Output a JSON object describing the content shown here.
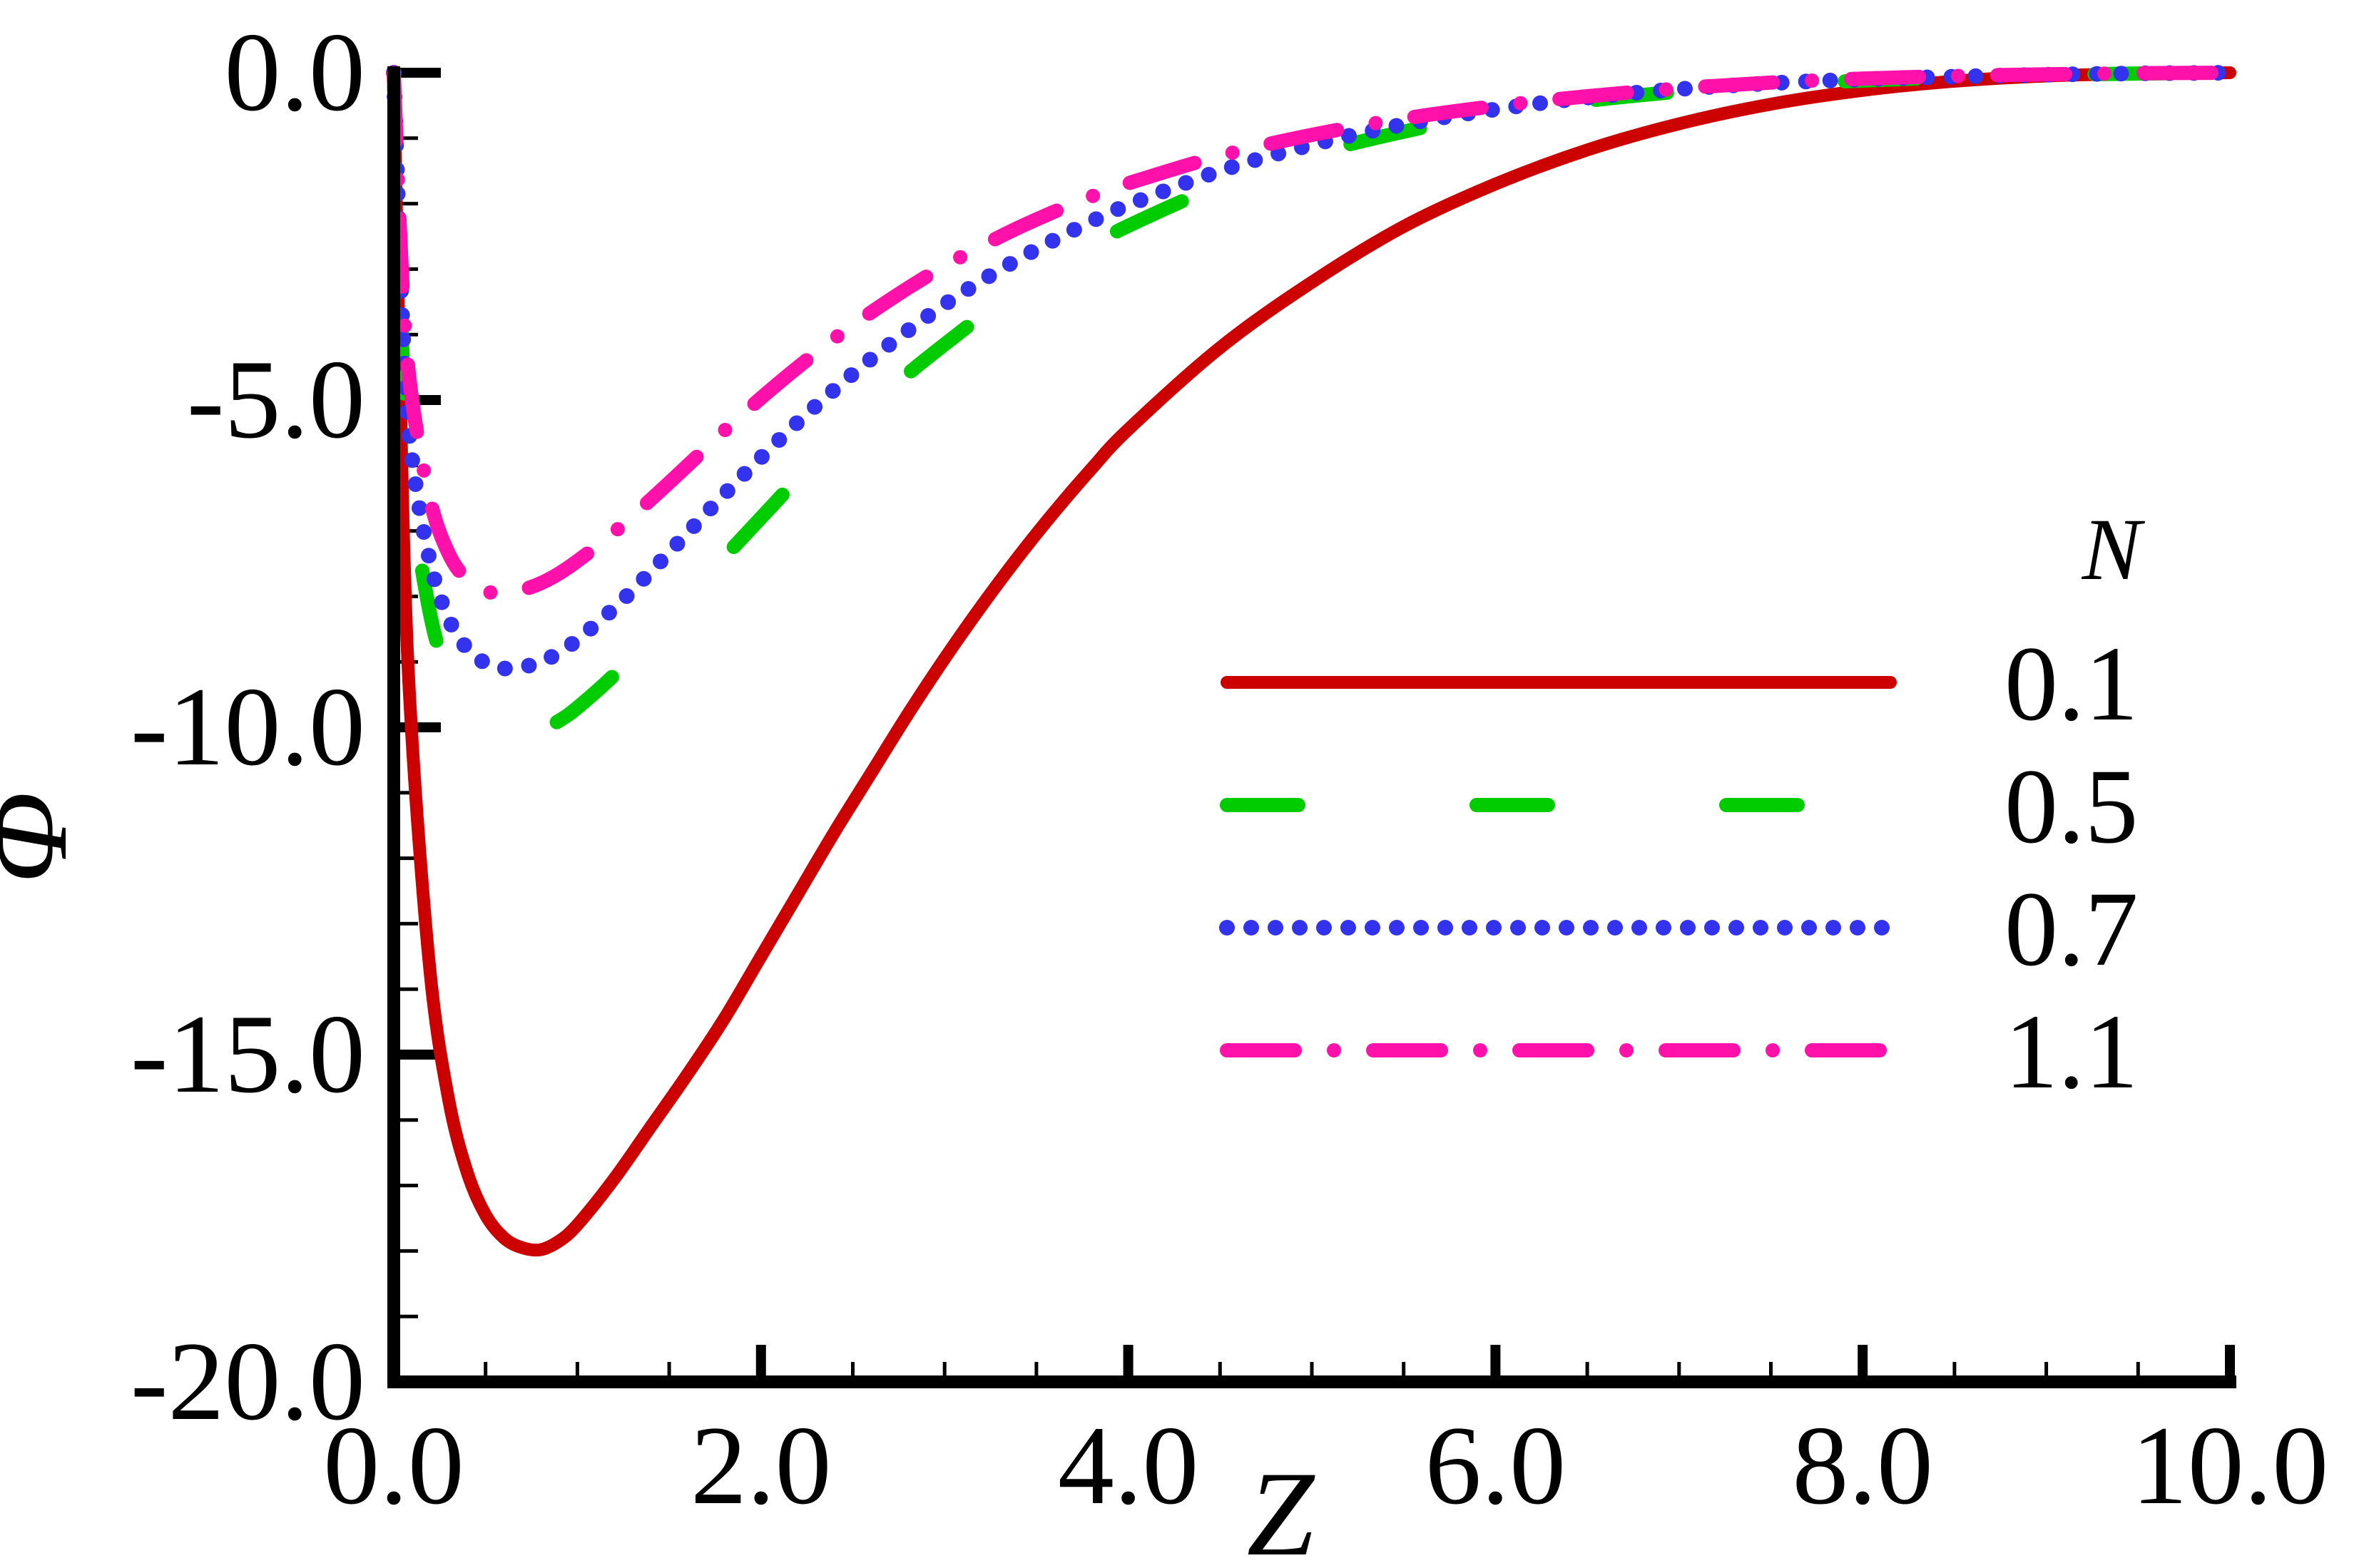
{
  "chart_data": {
    "type": "line",
    "title": "",
    "xlabel": "Z",
    "ylabel": "Φ",
    "xlim": [
      0,
      10
    ],
    "ylim": [
      -20,
      0
    ],
    "x_ticks": [
      0,
      2,
      4,
      6,
      8,
      10
    ],
    "x_tick_labels": [
      "0.0",
      "2.0",
      "4.0",
      "6.0",
      "8.0",
      "10.0"
    ],
    "y_ticks": [
      0,
      -5,
      -10,
      -15,
      -20
    ],
    "y_tick_labels": [
      "0.0",
      "-5.0",
      "-10.0",
      "-15.0",
      "-20.0"
    ],
    "grid": false,
    "legend": {
      "title": "N",
      "placement": "right"
    },
    "series": [
      {
        "name": "0.1",
        "color": "#cc0000",
        "style": "solid",
        "x": [
          0,
          0.05,
          0.1,
          0.2,
          0.3,
          0.4,
          0.5,
          0.6,
          0.7,
          0.8,
          0.9,
          1.0,
          1.2,
          1.4,
          1.6,
          1.8,
          2.0,
          2.2,
          2.4,
          2.6,
          2.8,
          3.0,
          3.2,
          3.4,
          3.6,
          3.8,
          4.0,
          4.5,
          5.0,
          5.5,
          6.0,
          6.5,
          7.0,
          7.5,
          8.0,
          8.5,
          9.0,
          9.5,
          10.0
        ],
        "y": [
          0,
          -6.8,
          -10.2,
          -13.8,
          -15.7,
          -16.8,
          -17.45,
          -17.8,
          -17.95,
          -17.98,
          -17.85,
          -17.6,
          -16.9,
          -16.1,
          -15.3,
          -14.45,
          -13.5,
          -12.55,
          -11.6,
          -10.7,
          -9.8,
          -8.95,
          -8.15,
          -7.4,
          -6.7,
          -6.05,
          -5.45,
          -4.2,
          -3.2,
          -2.35,
          -1.7,
          -1.18,
          -0.78,
          -0.48,
          -0.27,
          -0.13,
          -0.05,
          -0.015,
          0
        ]
      },
      {
        "name": "0.5",
        "color": "#00cc00",
        "style": "dashed",
        "x": [
          0,
          0.05,
          0.1,
          0.2,
          0.3,
          0.4,
          0.5,
          0.6,
          0.7,
          0.8,
          0.9,
          1.0,
          1.2,
          1.4,
          1.6,
          1.8,
          2.0,
          2.2,
          2.4,
          2.6,
          2.8,
          3.0,
          3.2,
          3.4,
          3.6,
          3.8,
          4.0,
          4.5,
          5.0,
          5.5,
          6.0,
          6.5,
          7.0,
          7.5,
          8.0,
          8.5,
          9.0,
          9.5,
          10.0
        ],
        "y": [
          0,
          -4.5,
          -6.5,
          -8.3,
          -9.25,
          -9.75,
          -10.02,
          -10.12,
          -10.12,
          -10.05,
          -9.9,
          -9.7,
          -9.2,
          -8.6,
          -8.0,
          -7.4,
          -6.8,
          -6.2,
          -5.65,
          -5.1,
          -4.6,
          -4.15,
          -3.72,
          -3.33,
          -2.97,
          -2.64,
          -2.34,
          -1.72,
          -1.25,
          -0.9,
          -0.63,
          -0.43,
          -0.29,
          -0.19,
          -0.12,
          -0.07,
          -0.035,
          -0.012,
          0
        ]
      },
      {
        "name": "0.7",
        "color": "#3333ee",
        "style": "dotted",
        "x": [
          0,
          0.05,
          0.1,
          0.2,
          0.3,
          0.4,
          0.5,
          0.6,
          0.7,
          0.8,
          0.9,
          1.0,
          1.2,
          1.4,
          1.6,
          1.8,
          2.0,
          2.2,
          2.4,
          2.6,
          2.8,
          3.0,
          3.2,
          3.4,
          3.6,
          3.8,
          4.0,
          4.5,
          5.0,
          5.5,
          6.0,
          6.5,
          7.0,
          7.5,
          8.0,
          8.5,
          9.0,
          9.5,
          10.0
        ],
        "y": [
          0,
          -4.0,
          -5.9,
          -7.5,
          -8.35,
          -8.8,
          -9.02,
          -9.1,
          -9.08,
          -9.0,
          -8.86,
          -8.66,
          -8.18,
          -7.62,
          -7.03,
          -6.44,
          -5.88,
          -5.34,
          -4.84,
          -4.37,
          -3.94,
          -3.54,
          -3.18,
          -2.85,
          -2.55,
          -2.27,
          -2.02,
          -1.5,
          -1.1,
          -0.79,
          -0.56,
          -0.38,
          -0.25,
          -0.16,
          -0.1,
          -0.06,
          -0.03,
          -0.01,
          0
        ]
      },
      {
        "name": "1.1",
        "color": "#ff11aa",
        "style": "dashdot",
        "x": [
          0,
          0.05,
          0.1,
          0.2,
          0.3,
          0.4,
          0.5,
          0.6,
          0.7,
          0.8,
          0.9,
          1.0,
          1.2,
          1.4,
          1.6,
          1.8,
          2.0,
          2.2,
          2.4,
          2.6,
          2.8,
          3.0,
          3.2,
          3.4,
          3.6,
          3.8,
          4.0,
          4.5,
          5.0,
          5.5,
          6.0,
          6.5,
          7.0,
          7.5,
          8.0,
          8.5,
          9.0,
          9.5,
          10.0
        ],
        "y": [
          0,
          -3.4,
          -5.0,
          -6.55,
          -7.35,
          -7.75,
          -7.92,
          -7.95,
          -7.9,
          -7.8,
          -7.65,
          -7.46,
          -7.02,
          -6.52,
          -6.0,
          -5.47,
          -4.97,
          -4.5,
          -4.06,
          -3.66,
          -3.29,
          -2.95,
          -2.65,
          -2.37,
          -2.12,
          -1.89,
          -1.69,
          -1.27,
          -0.95,
          -0.7,
          -0.51,
          -0.36,
          -0.24,
          -0.15,
          -0.09,
          -0.05,
          -0.025,
          -0.008,
          0
        ]
      }
    ]
  }
}
